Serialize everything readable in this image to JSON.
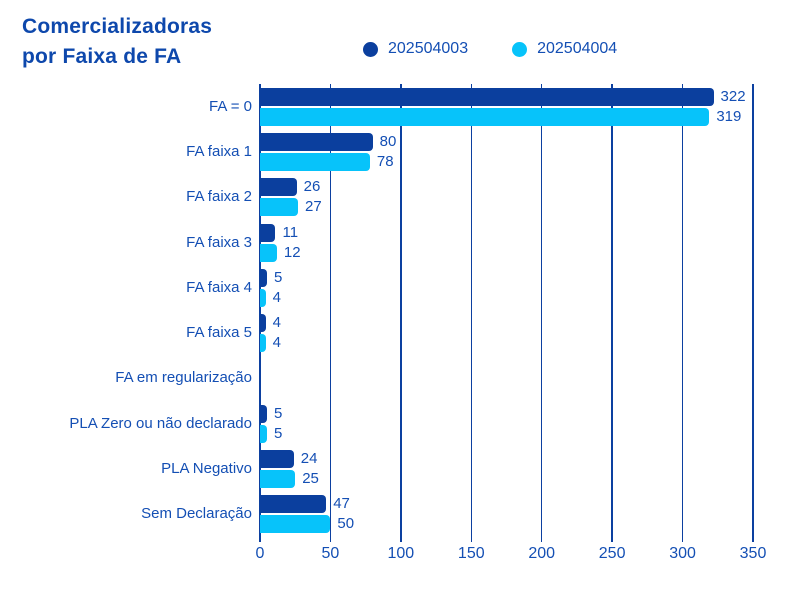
{
  "title": {
    "line1": "Comercializadoras",
    "line2": "por Faixa de FA"
  },
  "colors": {
    "series1": "#0b3f9e",
    "series2": "#07c3fa",
    "grid": "#0c40a0",
    "text": "#144fb4",
    "title": "#0e48ac",
    "background": "#ffffff"
  },
  "chart_data": {
    "type": "bar",
    "orientation": "horizontal",
    "title": "Comercializadoras por Faixa de FA",
    "categories": [
      "FA = 0",
      "FA faixa 1",
      "FA faixa 2",
      "FA faixa 3",
      "FA faixa 4",
      "FA faixa 5",
      "FA em regularização",
      "PLA Zero ou não declarado",
      "PLA Negativo",
      "Sem Declaração"
    ],
    "series": [
      {
        "name": "202504003",
        "color": "#0b3f9e",
        "values": [
          322,
          80,
          26,
          11,
          5,
          4,
          0,
          5,
          24,
          47
        ]
      },
      {
        "name": "202504004",
        "color": "#07c3fa",
        "values": [
          319,
          78,
          27,
          12,
          4,
          4,
          0,
          5,
          25,
          50
        ]
      }
    ],
    "xlim": [
      0,
      350
    ],
    "x_ticks": [
      0,
      50,
      100,
      150,
      200,
      250,
      300,
      350
    ],
    "grid": true,
    "value_labels": true,
    "legend_position": "top"
  }
}
